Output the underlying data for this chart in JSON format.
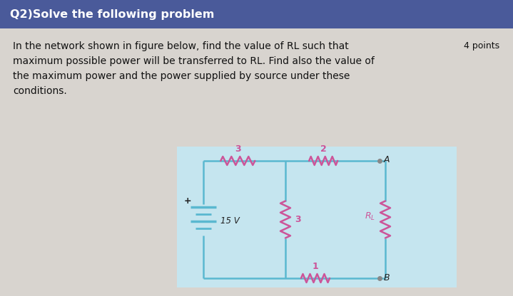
{
  "header_text": "Q2)Solve the following problem",
  "header_bg": "#4a5a9a",
  "header_text_color": "#ffffff",
  "body_bg": "#d8d4cf",
  "body_text_line1": "In the network shown in figure below, find the value of RL such that",
  "body_text_line2": "maximum possible power will be transferred to RL. Find also the value of",
  "body_text_line3": "the maximum power and the power supplied by source under these",
  "body_text_line4": "conditions.",
  "points_text": "4 points",
  "circuit_bg": "#c5e5ef",
  "wire_color": "#5ab8d0",
  "resistor_color": "#cc5599",
  "fig_width": 7.19,
  "fig_height": 4.16,
  "dpi": 100
}
